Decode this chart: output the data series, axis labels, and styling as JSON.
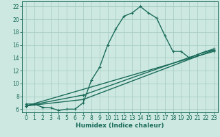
{
  "xlabel": "Humidex (Indice chaleur)",
  "xlim": [
    -0.5,
    23.5
  ],
  "ylim": [
    5.5,
    22.8
  ],
  "xticks": [
    0,
    1,
    2,
    3,
    4,
    5,
    6,
    7,
    8,
    9,
    10,
    11,
    12,
    13,
    14,
    15,
    16,
    17,
    18,
    19,
    20,
    21,
    22,
    23
  ],
  "yticks": [
    6,
    8,
    10,
    12,
    14,
    16,
    18,
    20,
    22
  ],
  "background_color": "#cce8e0",
  "grid_color": "#aacec6",
  "line_color": "#1a6b5a",
  "curve_x": [
    0,
    1,
    2,
    3,
    4,
    5,
    6,
    7,
    8,
    9,
    10,
    11,
    12,
    13,
    14,
    15,
    16,
    17,
    18,
    19,
    20,
    21,
    22,
    23
  ],
  "curve_y": [
    6.8,
    6.8,
    6.3,
    6.2,
    5.8,
    6.0,
    6.0,
    7.0,
    10.5,
    12.5,
    16.0,
    18.5,
    20.5,
    21.0,
    22.0,
    21.0,
    20.2,
    17.5,
    15.0,
    15.0,
    14.0,
    14.5,
    15.0,
    15.2
  ],
  "line1_x": [
    0,
    23
  ],
  "line1_y": [
    6.5,
    15.0
  ],
  "line2_x": [
    0,
    7,
    23
  ],
  "line2_y": [
    6.5,
    7.5,
    15.2
  ],
  "line3_x": [
    0,
    7,
    23
  ],
  "line3_y": [
    6.5,
    8.2,
    15.4
  ],
  "marker_size": 3.5,
  "line_width": 1.0
}
